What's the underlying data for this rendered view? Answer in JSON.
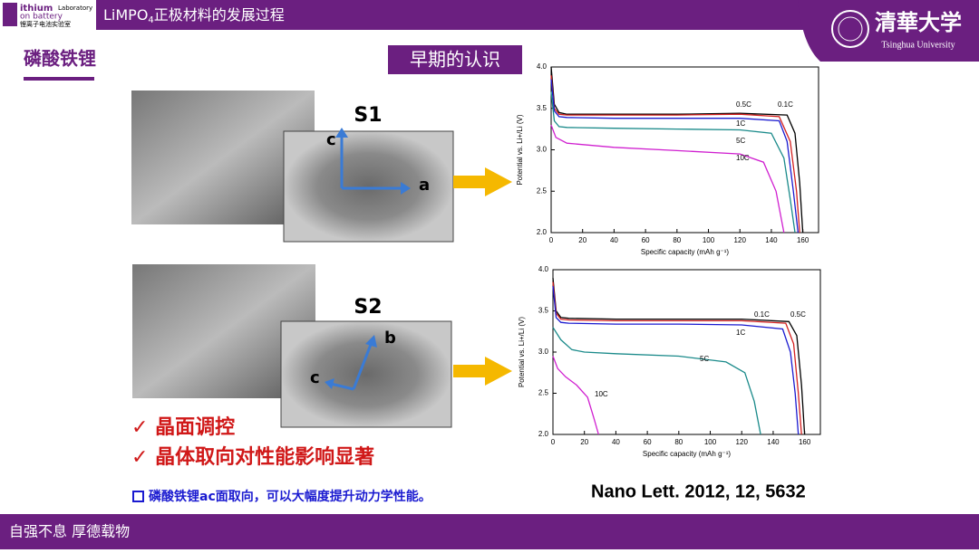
{
  "header": {
    "lab_name_1": "ithium",
    "lab_name_2": "Laboratory",
    "lab_name_3": "on battery",
    "lab_cn": "锂离子电池实验室",
    "title_main": "LiMPO",
    "title_sub": "4",
    "title_rest": "正极材料的发展过程",
    "university": "清華大学",
    "university_en": "Tsinghua University"
  },
  "section_title": "磷酸铁锂",
  "badge": "早期的认识",
  "samples": [
    {
      "label": "S1",
      "axis_1": "c",
      "axis_2": "a"
    },
    {
      "label": "S2",
      "axis_1": "b",
      "axis_2": "c"
    }
  ],
  "checks": [
    "晶面调控",
    "晶体取向对性能影响显著"
  ],
  "note": "磷酸铁锂ac面取向，可以大幅度提升动力学性能。",
  "reference": "Nano Lett. 2012, 12, 5632",
  "footer": "自强不息 厚德载物",
  "charts": [
    {
      "type": "line",
      "x_label": "Specific capacity (mAh g⁻¹)",
      "y_label": "Potential vs. Li+/Li (V)",
      "xlim": [
        0,
        170
      ],
      "ylim": [
        2,
        4
      ],
      "xticks": [
        0,
        20,
        40,
        60,
        80,
        100,
        120,
        140,
        160
      ],
      "yticks": [
        {
          "value": 2,
          "label": "2.0"
        },
        2.5,
        {
          "value": 3,
          "label": "3.0"
        },
        3.5,
        {
          "value": 4,
          "label": "4.0"
        }
      ],
      "series": [
        {
          "name": "0.1C",
          "color": "#000000",
          "x": [
            0,
            2,
            5,
            10,
            40,
            80,
            120,
            150,
            155,
            158,
            160
          ],
          "values": [
            4.0,
            3.55,
            3.45,
            3.43,
            3.43,
            3.43,
            3.44,
            3.42,
            3.2,
            2.6,
            2.0
          ]
        },
        {
          "name": "0.5C",
          "color": "#d42020",
          "x": [
            0,
            2,
            5,
            10,
            40,
            80,
            120,
            145,
            152,
            156,
            158
          ],
          "values": [
            3.9,
            3.5,
            3.43,
            3.42,
            3.42,
            3.42,
            3.43,
            3.4,
            3.1,
            2.5,
            2.0
          ]
        },
        {
          "name": "1C",
          "color": "#1a1ad0",
          "x": [
            0,
            2,
            5,
            10,
            40,
            80,
            120,
            145,
            150,
            154,
            157
          ],
          "values": [
            3.85,
            3.47,
            3.4,
            3.39,
            3.38,
            3.38,
            3.38,
            3.35,
            3.1,
            2.5,
            2.0
          ]
        },
        {
          "name": "5C",
          "color": "#1a8a8a",
          "x": [
            0,
            2,
            5,
            10,
            40,
            80,
            120,
            140,
            148,
            152,
            155
          ],
          "values": [
            3.7,
            3.35,
            3.28,
            3.27,
            3.26,
            3.25,
            3.24,
            3.2,
            2.9,
            2.4,
            2.0
          ]
        },
        {
          "name": "10C",
          "color": "#d020d0",
          "x": [
            0,
            3,
            10,
            40,
            80,
            120,
            135,
            143,
            148
          ],
          "values": [
            3.3,
            3.15,
            3.08,
            3.03,
            2.99,
            2.95,
            2.85,
            2.5,
            2.0
          ]
        }
      ]
    },
    {
      "type": "line",
      "x_label": "Specific capacity (mAh g⁻¹)",
      "y_label": "Potential vs. Li+/Li (V)",
      "xlim": [
        0,
        170
      ],
      "ylim": [
        2,
        4
      ],
      "xticks": [
        0,
        20,
        40,
        60,
        80,
        100,
        120,
        140,
        160
      ],
      "yticks": [
        {
          "value": 2,
          "label": "2.0"
        },
        2.5,
        {
          "value": 3,
          "label": "3.0"
        },
        3.5,
        {
          "value": 4,
          "label": "4.0"
        }
      ],
      "series": [
        {
          "name": "0.1C",
          "color": "#000000",
          "x": [
            0,
            2,
            5,
            10,
            40,
            80,
            120,
            150,
            155,
            158,
            160
          ],
          "values": [
            3.9,
            3.5,
            3.42,
            3.41,
            3.4,
            3.4,
            3.4,
            3.37,
            3.2,
            2.6,
            2.0
          ]
        },
        {
          "name": "0.5C",
          "color": "#d42020",
          "x": [
            0,
            2,
            5,
            10,
            40,
            80,
            120,
            148,
            153,
            156,
            158
          ],
          "values": [
            3.85,
            3.47,
            3.4,
            3.39,
            3.38,
            3.38,
            3.38,
            3.35,
            3.1,
            2.5,
            2.0
          ]
        },
        {
          "name": "1C",
          "color": "#1a1ad0",
          "x": [
            0,
            2,
            5,
            10,
            40,
            80,
            120,
            146,
            151,
            154,
            156
          ],
          "values": [
            3.8,
            3.42,
            3.36,
            3.35,
            3.34,
            3.34,
            3.33,
            3.28,
            3.0,
            2.5,
            2.0
          ]
        },
        {
          "name": "5C",
          "color": "#1a8a8a",
          "x": [
            0,
            5,
            12,
            20,
            40,
            80,
            110,
            122,
            128,
            132
          ],
          "values": [
            3.3,
            3.15,
            3.03,
            3.0,
            2.98,
            2.95,
            2.88,
            2.75,
            2.4,
            2.0
          ]
        },
        {
          "name": "10C",
          "color": "#d020d0",
          "x": [
            0,
            3,
            8,
            15,
            22,
            26,
            29
          ],
          "values": [
            2.95,
            2.8,
            2.7,
            2.6,
            2.45,
            2.2,
            2.0
          ]
        }
      ]
    }
  ]
}
